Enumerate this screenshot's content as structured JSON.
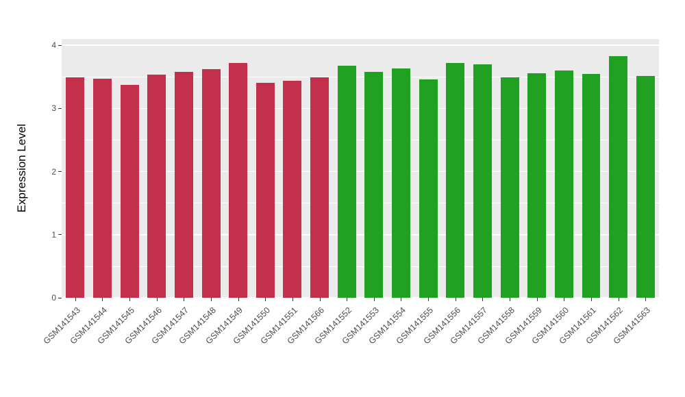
{
  "chart_data": {
    "type": "bar",
    "title": "",
    "xlabel": "",
    "ylabel": "Expression Level",
    "ylim": [
      0,
      4
    ],
    "y_ticks": [
      0,
      1,
      2,
      3,
      4
    ],
    "grid": "on",
    "legend": "none",
    "categories": [
      "GSM141543",
      "GSM141544",
      "GSM141545",
      "GSM141546",
      "GSM141547",
      "GSM141548",
      "GSM141549",
      "GSM141550",
      "GSM141551",
      "GSM141566",
      "GSM141552",
      "GSM141553",
      "GSM141554",
      "GSM141555",
      "GSM141556",
      "GSM141557",
      "GSM141558",
      "GSM141559",
      "GSM141560",
      "GSM141561",
      "GSM141562",
      "GSM141563"
    ],
    "values": [
      3.49,
      3.47,
      3.37,
      3.54,
      3.58,
      3.62,
      3.72,
      3.41,
      3.44,
      3.49,
      3.68,
      3.58,
      3.63,
      3.46,
      3.72,
      3.7,
      3.49,
      3.56,
      3.6,
      3.55,
      3.83,
      3.51
    ],
    "groups": [
      "red",
      "red",
      "red",
      "red",
      "red",
      "red",
      "red",
      "red",
      "red",
      "red",
      "green",
      "green",
      "green",
      "green",
      "green",
      "green",
      "green",
      "green",
      "green",
      "green",
      "green",
      "green"
    ]
  },
  "colors": {
    "red": "#C2304B",
    "green": "#21A121",
    "panel_bg": "#EBEBEB",
    "grid": "#FFFFFF"
  }
}
